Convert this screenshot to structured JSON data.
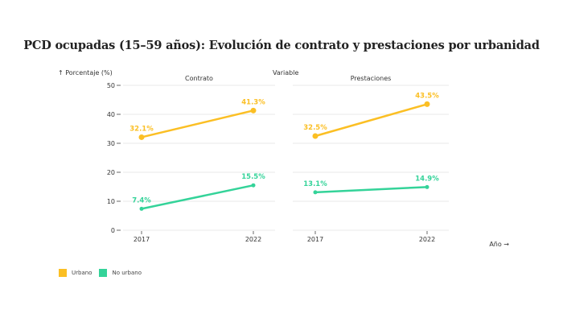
{
  "chart_data": {
    "type": "line",
    "title": "PCD ocupadas (15–59 años): Evolución de contrato y prestaciones por urbanidad",
    "ylabel": "↑ Porcentaje (%)",
    "xlabel": "Año →",
    "facet_label": "Variable",
    "ylim": [
      0,
      50
    ],
    "yticks": [
      0,
      10,
      20,
      30,
      40,
      50
    ],
    "x": [
      "2017",
      "2022"
    ],
    "grid": true,
    "legend_position": "bottom-left",
    "panels": [
      {
        "name": "Contrato",
        "series": [
          {
            "name": "Urbano",
            "color": "#fbbf24",
            "values": [
              32.1,
              41.3
            ],
            "labels": [
              "32.1%",
              "41.3%"
            ]
          },
          {
            "name": "No urbano",
            "color": "#34d399",
            "values": [
              7.4,
              15.5
            ],
            "labels": [
              "7.4%",
              "15.5%"
            ]
          }
        ]
      },
      {
        "name": "Prestaciones",
        "series": [
          {
            "name": "Urbano",
            "color": "#fbbf24",
            "values": [
              32.5,
              43.5
            ],
            "labels": [
              "32.5%",
              "43.5%"
            ]
          },
          {
            "name": "No urbano",
            "color": "#34d399",
            "values": [
              13.1,
              14.9
            ],
            "labels": [
              "13.1%",
              "14.9%"
            ]
          }
        ]
      }
    ],
    "legend": [
      {
        "name": "Urbano",
        "color": "#fbbf24"
      },
      {
        "name": "No urbano",
        "color": "#34d399"
      }
    ]
  }
}
